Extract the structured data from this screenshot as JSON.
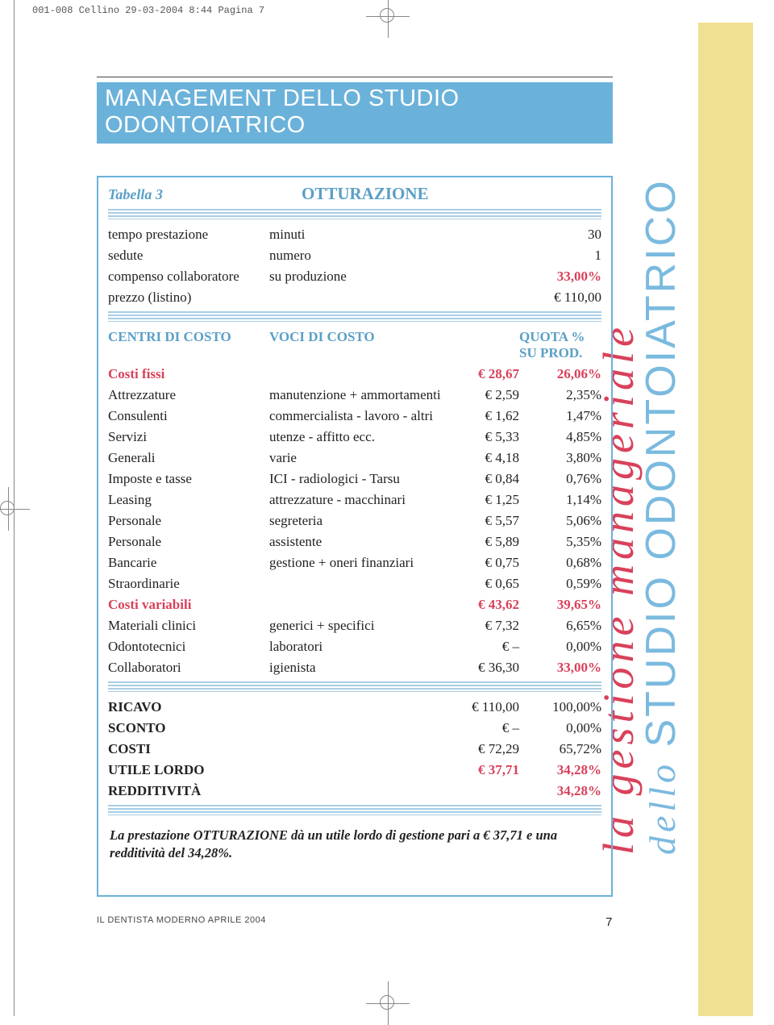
{
  "print_header": "001-008 Cellino  29-03-2004  8:44  Pagina 7",
  "side": {
    "line1": "la gestione manageriale",
    "line2_prefix": "dello ",
    "line2_main": "STUDIO ODONTOIATRICO"
  },
  "banner": "MANAGEMENT DELLO STUDIO ODONTOIATRICO",
  "table": {
    "label": "Tabella 3",
    "title": "OTTURAZIONE",
    "top_rows": [
      {
        "c1": "tempo prestazione",
        "c2": "minuti",
        "c3": "",
        "c4": "30"
      },
      {
        "c1": "sedute",
        "c2": "numero",
        "c3": "",
        "c4": "1"
      },
      {
        "c1": "compenso collaboratore",
        "c2": "su produzione",
        "c3": "",
        "c4": "33,00%",
        "c4_class": "redb"
      },
      {
        "c1": "prezzo (listino)",
        "c2": "",
        "c3": "",
        "c4": "€ 110,00"
      }
    ],
    "cost_header": {
      "c1": "CENTRI DI COSTO",
      "c2": "VOCI DI COSTO",
      "c4": "QUOTA % SU PROD."
    },
    "cost_rows": [
      {
        "c1": "Costi fissi",
        "c2": "",
        "c3": "€   28,67",
        "c4": "26,06%",
        "class": "redb"
      },
      {
        "c1": "Attrezzature",
        "c2": "manutenzione + ammortamenti",
        "c3": "€     2,59",
        "c4": "2,35%"
      },
      {
        "c1": "Consulenti",
        "c2": "commercialista - lavoro - altri",
        "c3": "€     1,62",
        "c4": "1,47%"
      },
      {
        "c1": "Servizi",
        "c2": "utenze - affitto ecc.",
        "c3": "€     5,33",
        "c4": "4,85%"
      },
      {
        "c1": "Generali",
        "c2": "varie",
        "c3": "€     4,18",
        "c4": "3,80%"
      },
      {
        "c1": "Imposte e tasse",
        "c2": "ICI - radiologici - Tarsu",
        "c3": "€     0,84",
        "c4": "0,76%"
      },
      {
        "c1": "Leasing",
        "c2": "attrezzature - macchinari",
        "c3": "€     1,25",
        "c4": "1,14%"
      },
      {
        "c1": "Personale",
        "c2": "segreteria",
        "c3": "€     5,57",
        "c4": "5,06%"
      },
      {
        "c1": "Personale",
        "c2": "assistente",
        "c3": "€     5,89",
        "c4": "5,35%"
      },
      {
        "c1": "Bancarie",
        "c2": "gestione + oneri finanziari",
        "c3": "€     0,75",
        "c4": "0,68%"
      },
      {
        "c1": "Straordinarie",
        "c2": "",
        "c3": "€     0,65",
        "c4": "0,59%"
      },
      {
        "c1": "Costi variabili",
        "c2": "",
        "c3": "€   43,62",
        "c4": "39,65%",
        "class": "redb"
      },
      {
        "c1": "Materiali clinici",
        "c2": "generici + specifici",
        "c3": "€     7,32",
        "c4": "6,65%"
      },
      {
        "c1": "Odontotecnici",
        "c2": "laboratori",
        "c3": "€        –",
        "c4": "0,00%"
      },
      {
        "c1": "Collaboratori",
        "c2": "igienista",
        "c3": "€   36,30",
        "c4": "33,00%",
        "c4_class": "redb"
      }
    ],
    "summary_rows": [
      {
        "c1": "RICAVO",
        "c3": "€ 110,00",
        "c4": "100,00%"
      },
      {
        "c1": "SCONTO",
        "c3": "€        –",
        "c4": "0,00%"
      },
      {
        "c1": "COSTI",
        "c3": "€   72,29",
        "c4": "65,72%"
      },
      {
        "c1": "UTILE LORDO",
        "c3": "€   37,71",
        "c4": "34,28%",
        "c3_class": "redb",
        "c4_class": "redb"
      },
      {
        "c1": "REDDITIVITÀ",
        "c3": "",
        "c4": "34,28%",
        "c4_class": "redb"
      }
    ],
    "note": "La prestazione OTTURAZIONE dà un utile lordo di gestione pari a € 37,71 e una redditività del 34,28%."
  },
  "footer": {
    "left": "IL DENTISTA MODERNO   APRILE  2004",
    "page": "7"
  }
}
